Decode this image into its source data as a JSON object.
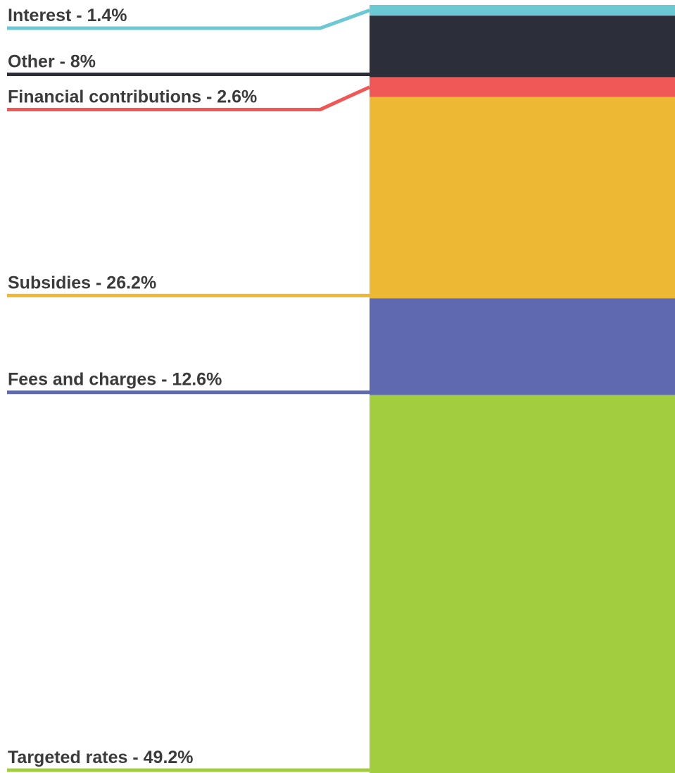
{
  "chart_data": {
    "type": "stacked-bar",
    "values": [
      1.4,
      8,
      2.6,
      26.2,
      12.6,
      49.2
    ],
    "value_labels": [
      "Interest - 1.4%",
      "Other - 8%",
      "Financial contributions - 2.6%",
      "Subsidies - 26.2%",
      "Fees and charges - 12.6%",
      "Targeted rates - 49.2%"
    ],
    "colors": [
      "#6cc8d2",
      "#2c2e3a",
      "#f05757",
      "#edb834",
      "#5f69b0",
      "#a1cd3e"
    ],
    "ylim": [
      0,
      100
    ]
  }
}
